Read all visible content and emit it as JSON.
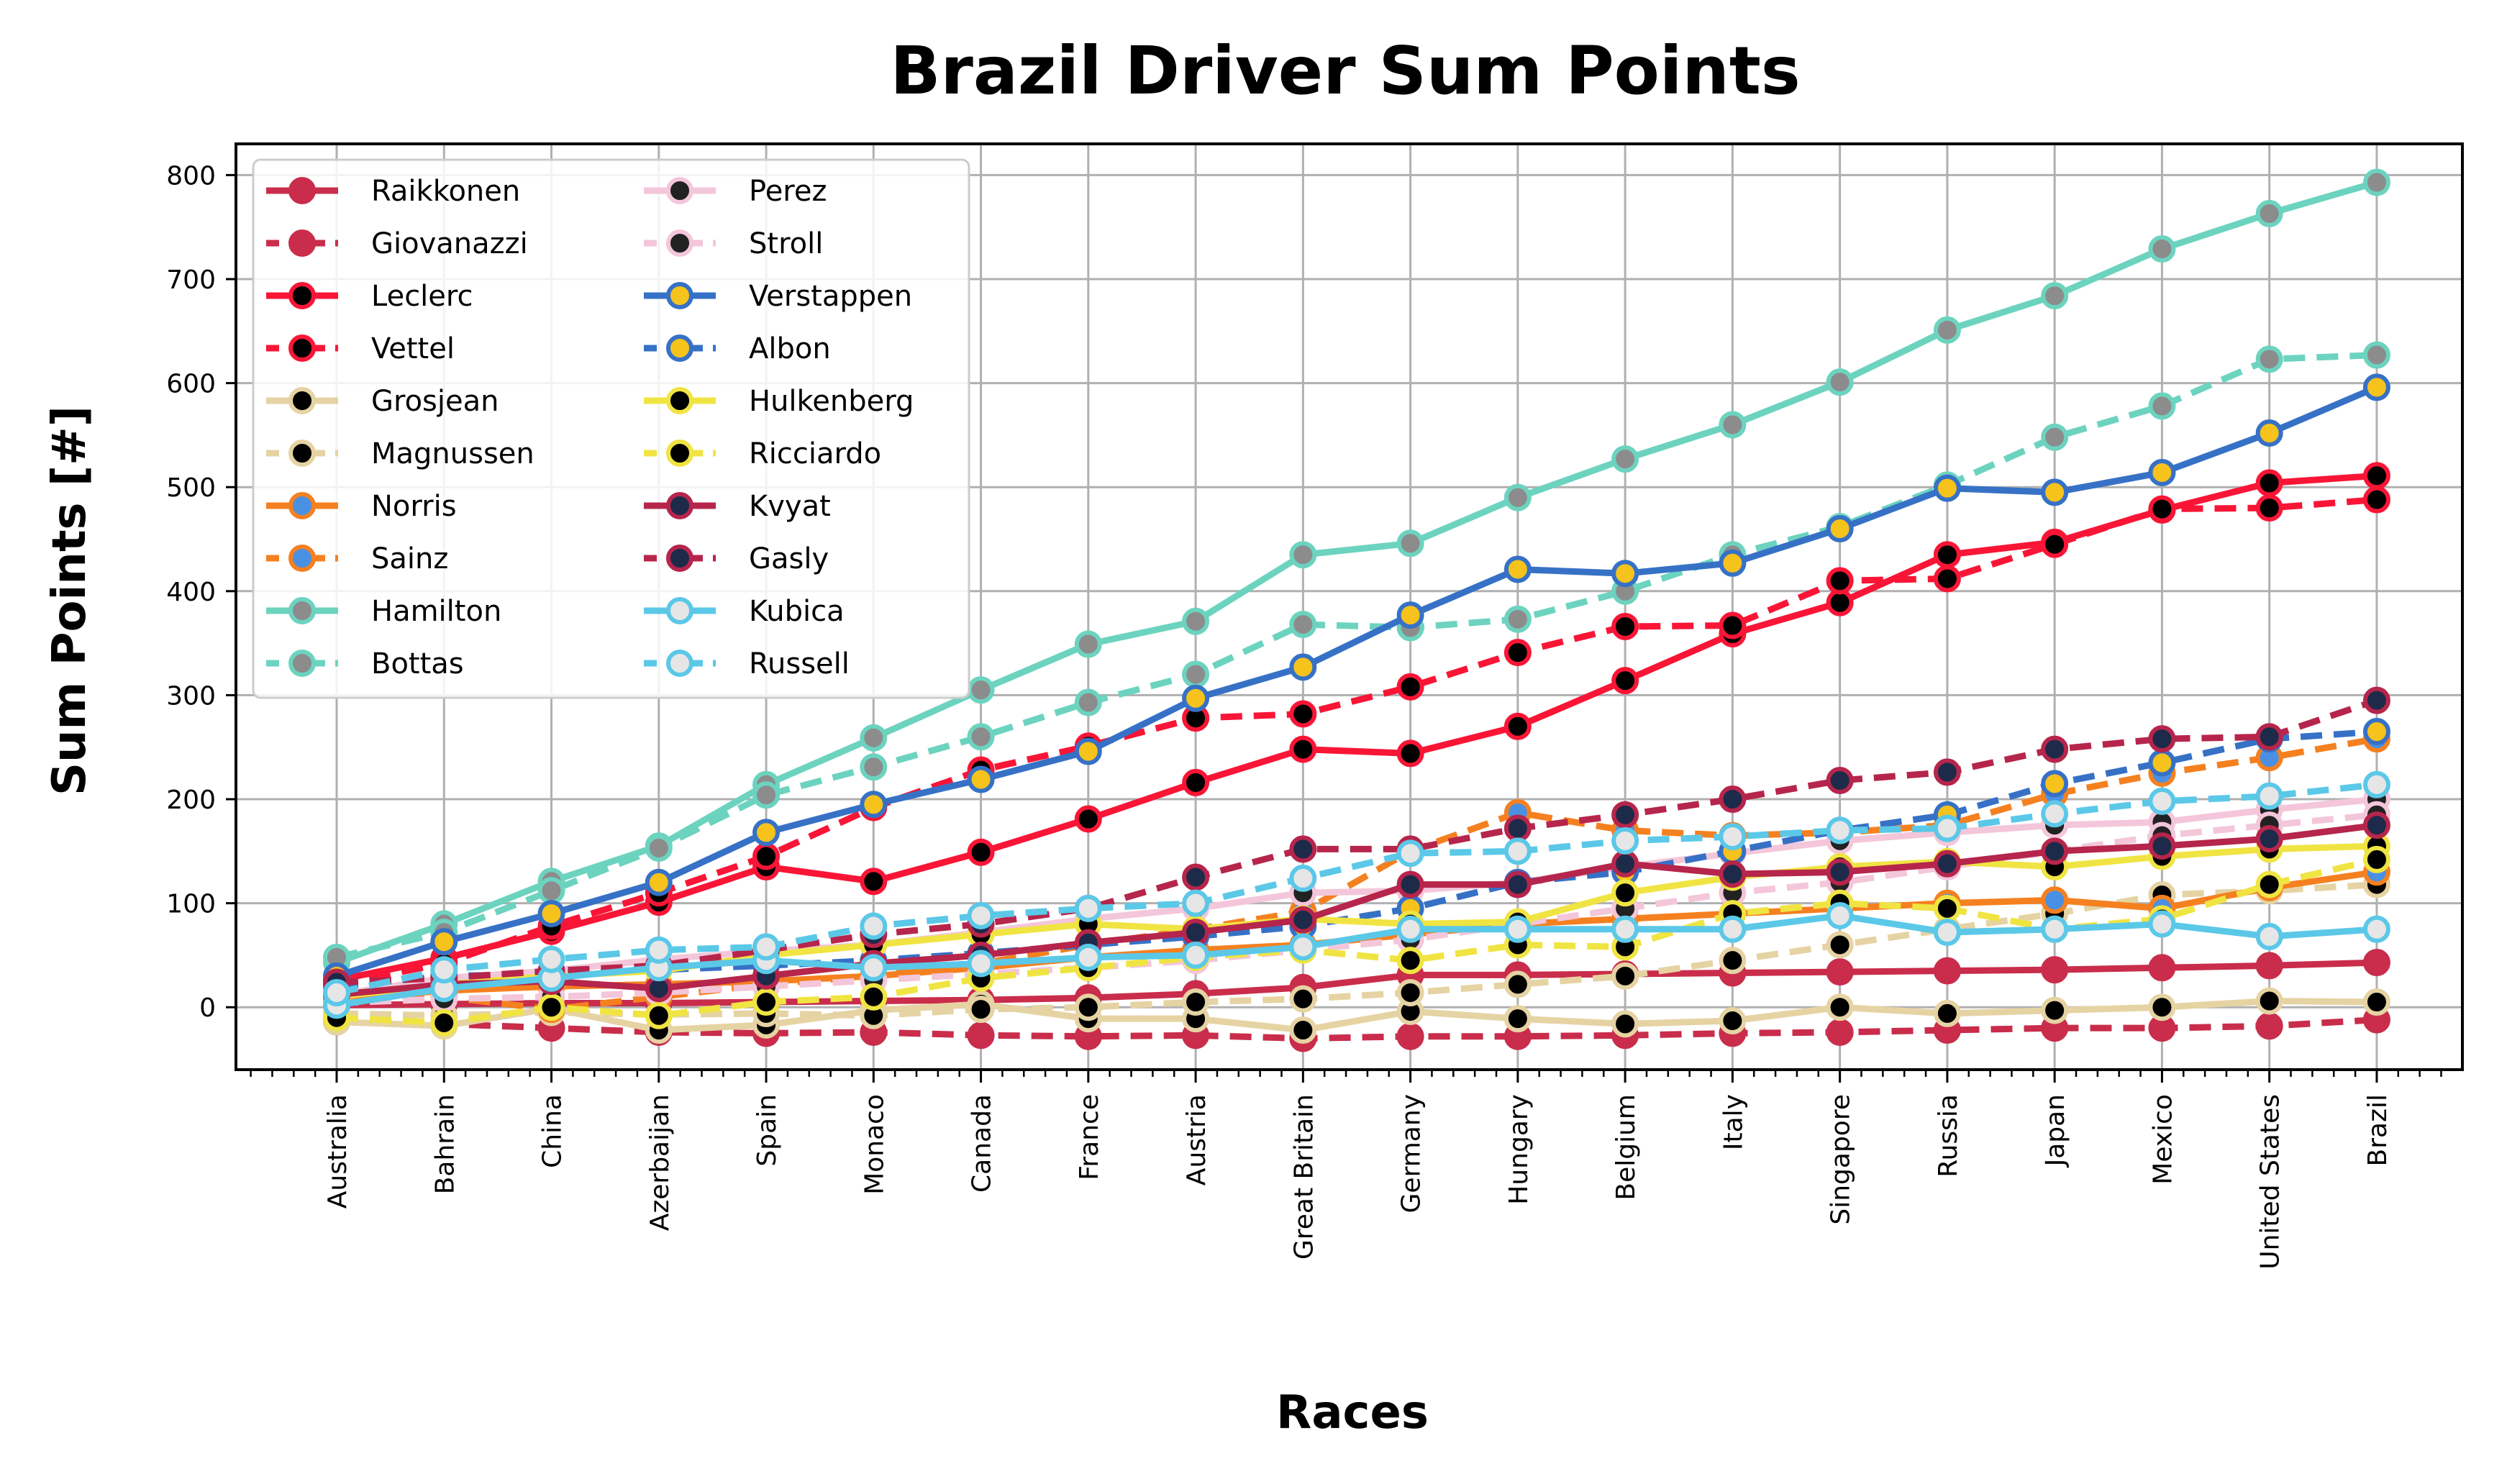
{
  "chart_data": {
    "type": "line",
    "title": "Brazil Driver Sum Points",
    "xlabel": "Races",
    "ylabel": "Sum Points [#]",
    "ylim": [
      -60,
      830
    ],
    "yticks": [
      0,
      100,
      200,
      300,
      400,
      500,
      600,
      700,
      800
    ],
    "grid": true,
    "legend_position": "top-left",
    "categories": [
      "Australia",
      "Bahrain",
      "China",
      "Azerbaijan",
      "Spain",
      "Monaco",
      "Canada",
      "France",
      "Austria",
      "Great Britain",
      "Germany",
      "Hungary",
      "Belgium",
      "Italy",
      "Singapore",
      "Russia",
      "Japan",
      "Mexico",
      "United States",
      "Brazil"
    ],
    "series": [
      {
        "name": "Raikkonen",
        "color": "#C92D4B",
        "marker_fill": "#C92D4B",
        "dash": false,
        "values": [
          2,
          3,
          4,
          4,
          5,
          6,
          7,
          9,
          13,
          19,
          31,
          31,
          32,
          33,
          34,
          35,
          36,
          38,
          40,
          43
        ]
      },
      {
        "name": "Giovanazzi",
        "color": "#C92D4B",
        "marker_fill": "#C92D4B",
        "dash": true,
        "values": [
          -14,
          -16,
          -20,
          -24,
          -25,
          -24,
          -27,
          -28,
          -27,
          -30,
          -28,
          -28,
          -27,
          -25,
          -24,
          -22,
          -20,
          -20,
          -18,
          -12
        ]
      },
      {
        "name": "Leclerc",
        "color": "#F91536",
        "marker_fill": "#000000",
        "dash": false,
        "values": [
          26,
          47,
          73,
          101,
          135,
          121,
          149,
          181,
          216,
          248,
          244,
          270,
          314,
          359,
          389,
          435,
          447,
          478,
          504,
          511
        ]
      },
      {
        "name": "Vettel",
        "color": "#F91536",
        "marker_fill": "#000000",
        "dash": true,
        "values": [
          22,
          42,
          78,
          110,
          145,
          192,
          228,
          251,
          278,
          282,
          308,
          341,
          366,
          367,
          410,
          412,
          445,
          479,
          480,
          488
        ]
      },
      {
        "name": "Grosjean",
        "color": "#E6D3A3",
        "marker_fill": "#000000",
        "dash": false,
        "values": [
          -14,
          -18,
          -1,
          -22,
          -17,
          -3,
          3,
          -11,
          -11,
          -22,
          -4,
          -11,
          -16,
          -13,
          0,
          -6,
          -3,
          0,
          6,
          5
        ]
      },
      {
        "name": "Magnussen",
        "color": "#E6D3A3",
        "marker_fill": "#000000",
        "dash": true,
        "values": [
          -6,
          -8,
          -5,
          -7,
          -6,
          -8,
          -2,
          0,
          5,
          8,
          14,
          22,
          30,
          45,
          60,
          75,
          90,
          108,
          112,
          118
        ]
      },
      {
        "name": "Norris",
        "color": "#F58020",
        "marker_fill": "#4A90E2",
        "dash": false,
        "values": [
          8,
          16,
          20,
          22,
          25,
          30,
          38,
          48,
          55,
          60,
          70,
          80,
          85,
          90,
          95,
          100,
          103,
          95,
          115,
          130
        ]
      },
      {
        "name": "Sainz",
        "color": "#F58020",
        "marker_fill": "#4A90E2",
        "dash": true,
        "values": [
          5,
          10,
          -2,
          10,
          22,
          30,
          42,
          60,
          75,
          92,
          150,
          187,
          170,
          165,
          168,
          175,
          205,
          225,
          240,
          258
        ]
      },
      {
        "name": "Hamilton",
        "color": "#6CD3BF",
        "marker_fill": "#8C8C8C",
        "dash": false,
        "values": [
          43,
          80,
          121,
          155,
          214,
          259,
          305,
          349,
          371,
          435,
          446,
          490,
          527,
          560,
          601,
          651,
          684,
          729,
          763,
          793
        ]
      },
      {
        "name": "Bottas",
        "color": "#6CD3BF",
        "marker_fill": "#8C8C8C",
        "dash": true,
        "values": [
          48,
          72,
          112,
          153,
          204,
          231,
          260,
          293,
          320,
          368,
          365,
          373,
          400,
          435,
          462,
          502,
          548,
          578,
          623,
          627
        ]
      },
      {
        "name": "Perez",
        "color": "#F4C6DA",
        "marker_fill": "#222222",
        "dash": false,
        "values": [
          12,
          28,
          35,
          46,
          54,
          60,
          72,
          85,
          95,
          110,
          112,
          120,
          135,
          148,
          160,
          168,
          175,
          178,
          190,
          200
        ]
      },
      {
        "name": "Stroll",
        "color": "#F4C6DA",
        "marker_fill": "#222222",
        "dash": true,
        "values": [
          4,
          8,
          10,
          14,
          20,
          26,
          32,
          38,
          45,
          55,
          65,
          80,
          95,
          110,
          120,
          135,
          150,
          165,
          175,
          185
        ]
      },
      {
        "name": "Verstappen",
        "color": "#3671C6",
        "marker_fill": "#F6C21C",
        "dash": false,
        "values": [
          30,
          63,
          90,
          120,
          168,
          195,
          219,
          246,
          297,
          327,
          377,
          421,
          417,
          427,
          460,
          499,
          495,
          514,
          552,
          596
        ]
      },
      {
        "name": "Albon",
        "color": "#3671C6",
        "marker_fill": "#F6C21C",
        "dash": true,
        "values": [
          20,
          30,
          32,
          36,
          40,
          45,
          52,
          60,
          68,
          78,
          95,
          120,
          130,
          150,
          170,
          185,
          215,
          235,
          258,
          265
        ]
      },
      {
        "name": "Hulkenberg",
        "color": "#F0E442",
        "marker_fill": "#000000",
        "dash": false,
        "values": [
          10,
          22,
          30,
          35,
          50,
          60,
          70,
          80,
          75,
          85,
          80,
          82,
          110,
          125,
          135,
          140,
          135,
          145,
          152,
          155
        ]
      },
      {
        "name": "Ricciardo",
        "color": "#F0E442",
        "marker_fill": "#000000",
        "dash": true,
        "values": [
          -10,
          -15,
          0,
          -8,
          5,
          10,
          28,
          38,
          48,
          55,
          45,
          60,
          58,
          90,
          100,
          95,
          75,
          85,
          118,
          142
        ]
      },
      {
        "name": "Kvyat",
        "color": "#B6254B",
        "marker_fill": "#1E2A4A",
        "dash": false,
        "values": [
          12,
          22,
          25,
          18,
          30,
          42,
          50,
          62,
          72,
          84,
          118,
          118,
          138,
          128,
          130,
          138,
          150,
          155,
          162,
          175
        ]
      },
      {
        "name": "Gasly",
        "color": "#B6254B",
        "marker_fill": "#1E2A4A",
        "dash": true,
        "values": [
          24,
          28,
          35,
          40,
          55,
          70,
          80,
          95,
          125,
          152,
          152,
          172,
          185,
          200,
          218,
          226,
          248,
          258,
          260,
          295
        ]
      },
      {
        "name": "Kubica",
        "color": "#5BC8E8",
        "marker_fill": "#E6E6E6",
        "dash": false,
        "values": [
          2,
          18,
          28,
          38,
          45,
          38,
          42,
          48,
          50,
          58,
          75,
          75,
          75,
          75,
          88,
          72,
          75,
          80,
          68,
          75
        ]
      },
      {
        "name": "Russell",
        "color": "#5BC8E8",
        "marker_fill": "#E6E6E6",
        "dash": true,
        "values": [
          14,
          36,
          46,
          55,
          58,
          78,
          88,
          95,
          100,
          124,
          148,
          150,
          160,
          164,
          170,
          172,
          186,
          198,
          203,
          214
        ]
      }
    ]
  }
}
